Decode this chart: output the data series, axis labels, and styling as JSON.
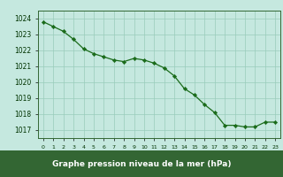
{
  "hours": [
    0,
    1,
    2,
    3,
    4,
    5,
    6,
    7,
    8,
    9,
    10,
    11,
    12,
    13,
    14,
    15,
    16,
    17,
    18,
    19,
    20,
    21,
    22,
    23
  ],
  "pressure": [
    1023.8,
    1023.5,
    1023.2,
    1022.7,
    1022.1,
    1021.8,
    1021.6,
    1021.4,
    1021.3,
    1021.5,
    1021.4,
    1021.2,
    1020.9,
    1020.4,
    1019.6,
    1019.2,
    1018.6,
    1018.1,
    1017.3,
    1017.3,
    1017.2,
    1017.2,
    1017.5,
    1017.5
  ],
  "line_color": "#1a6b1a",
  "marker_color": "#1a6b1a",
  "background_color": "#c5e8df",
  "grid_color": "#99ccbb",
  "ylabel_ticks": [
    1017,
    1018,
    1019,
    1020,
    1021,
    1022,
    1023,
    1024
  ],
  "xlabel": "Graphe pression niveau de la mer (hPa)",
  "ylim": [
    1016.5,
    1024.5
  ],
  "xlim": [
    -0.5,
    23.5
  ],
  "label_color": "#003300",
  "xlabel_bg": "#336633",
  "xlabel_text_color": "#ffffff"
}
